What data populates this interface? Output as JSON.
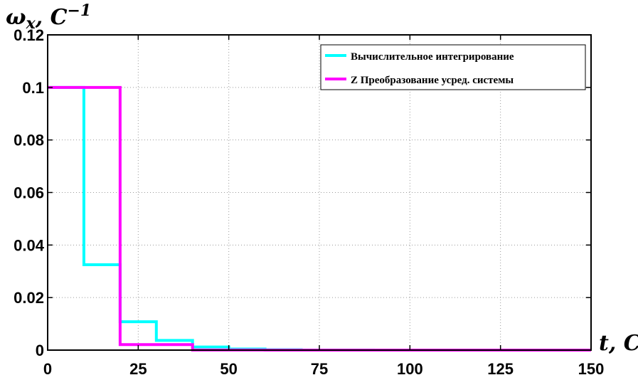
{
  "chart_data": {
    "type": "line",
    "step": true,
    "title": "",
    "xlabel": "t, C",
    "ylabel": "ωx, C−1",
    "ylabel_parts": {
      "symbol": "ω",
      "subscript": "x",
      "unit": ", C",
      "superscript": "−1"
    },
    "xlim": [
      0,
      150
    ],
    "ylim": [
      0,
      0.12
    ],
    "xticks": [
      0,
      25,
      50,
      75,
      100,
      125,
      150
    ],
    "xtick_labels": [
      "0",
      "25",
      "50",
      "75",
      "100",
      "125",
      "150"
    ],
    "yticks": [
      0,
      0.02,
      0.04,
      0.06,
      0.08,
      0.1,
      0.12
    ],
    "ytick_labels": [
      "0",
      "0.02",
      "0.04",
      "0.06",
      "0.08",
      "0.1",
      "0.12"
    ],
    "grid": true,
    "legend_position": "top-right",
    "series": [
      {
        "name": "Вычислительное интегрирование",
        "color": "#00ffff",
        "x": [
          0,
          10,
          20,
          30,
          40,
          50,
          60,
          70,
          80,
          90,
          100,
          110,
          120,
          130,
          140
        ],
        "y": [
          0.1,
          0.0325,
          0.0108,
          0.0037,
          0.0012,
          0.0004,
          0.00014,
          5e-05,
          2e-05,
          1e-05,
          0,
          0,
          0,
          0,
          0
        ]
      },
      {
        "name": "Z Преобразование усред. системы",
        "color": "#ff00ff",
        "x": [
          0,
          20,
          40,
          60,
          80,
          100,
          120,
          140,
          150
        ],
        "y": [
          0.1,
          0.0021,
          5e-05,
          0,
          0,
          0,
          0,
          0,
          0
        ]
      }
    ]
  }
}
